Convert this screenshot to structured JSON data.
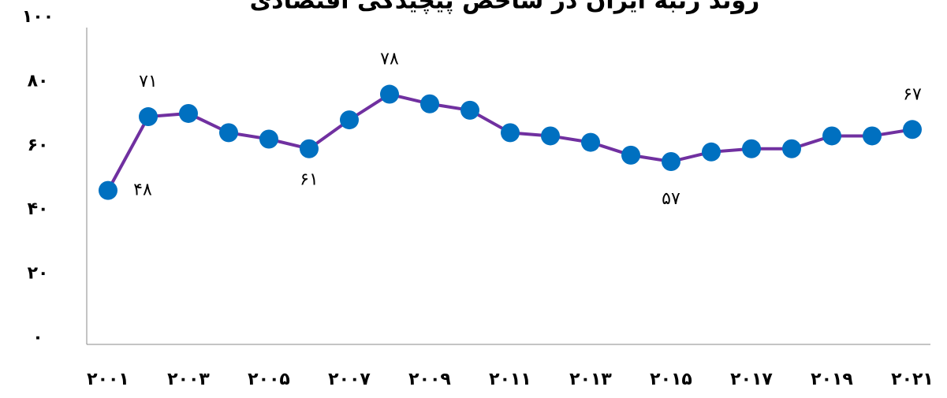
{
  "chart_data": {
    "type": "line",
    "title": "روند رتبه ایران در شاخص پیچیدگی اقتصادی",
    "categories": [
      "۲۰۰۱",
      null,
      "۲۰۰۳",
      null,
      "۲۰۰۵",
      null,
      "۲۰۰۷",
      null,
      "۲۰۰۹",
      null,
      "۲۰۱۱",
      null,
      "۲۰۱۳",
      null,
      "۲۰۱۵",
      null,
      "۲۰۱۷",
      null,
      "۲۰۱۹",
      null,
      "۲۰۲۱"
    ],
    "series": [
      {
        "color": "#7030a0",
        "marker_color": "#0070c0",
        "values": [
          48,
          71,
          72,
          66,
          64,
          61,
          70,
          78,
          75,
          73,
          66,
          65,
          63,
          59,
          57,
          60,
          61,
          61,
          65,
          65,
          67
        ],
        "value_labels": [
          "۴۸",
          "۷۱",
          null,
          null,
          null,
          "۶۱",
          null,
          "۷۸",
          null,
          null,
          null,
          null,
          null,
          null,
          "۵۷",
          null,
          null,
          null,
          null,
          null,
          "۶۷"
        ]
      }
    ],
    "ylim": [
      0,
      100
    ],
    "yticks": [
      {
        "value": 0,
        "label": "۰"
      },
      {
        "value": 20,
        "label": "۲۰"
      },
      {
        "value": 40,
        "label": "۴۰"
      },
      {
        "value": 60,
        "label": "۶۰"
      },
      {
        "value": 80,
        "label": "۸۰"
      },
      {
        "value": 100,
        "label": "۱۰۰"
      }
    ],
    "grid": false
  }
}
